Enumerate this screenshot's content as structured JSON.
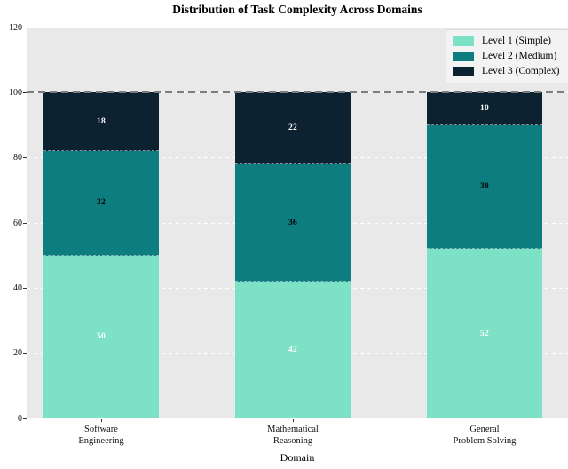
{
  "chart_data": {
    "type": "bar",
    "stacked": true,
    "title": "Distribution of Task Complexity Across Domains",
    "xlabel": "Domain",
    "ylabel": "",
    "ylim": [
      0,
      120
    ],
    "yticks": [
      0,
      20,
      40,
      60,
      80,
      100,
      120
    ],
    "grid": true,
    "legend_position": "upper right",
    "plot_background": "#e9e9e9",
    "gridline_color": "#ffffff",
    "categories": [
      "Software Engineering",
      "Mathematical Reasoning",
      "General Problem Solving"
    ],
    "category_label_lines": [
      [
        "Software",
        "Engineering"
      ],
      [
        "Mathematical",
        "Reasoning"
      ],
      [
        "General",
        "Problem Solving"
      ]
    ],
    "series": [
      {
        "name": "Level 1 (Simple)",
        "color": "#7ce1c5",
        "label_color": "#ffffff",
        "values": [
          50,
          42,
          52
        ]
      },
      {
        "name": "Level 2 (Medium)",
        "color": "#0d7d80",
        "label_color": "#000000",
        "values": [
          32,
          36,
          38
        ]
      },
      {
        "name": "Level 3 (Complex)",
        "color": "#0c2231",
        "label_color": "#ffffff",
        "values": [
          18,
          22,
          10
        ]
      }
    ],
    "reference_line": {
      "y": 100,
      "color": "#7d7d7d",
      "style": "dashed"
    }
  }
}
